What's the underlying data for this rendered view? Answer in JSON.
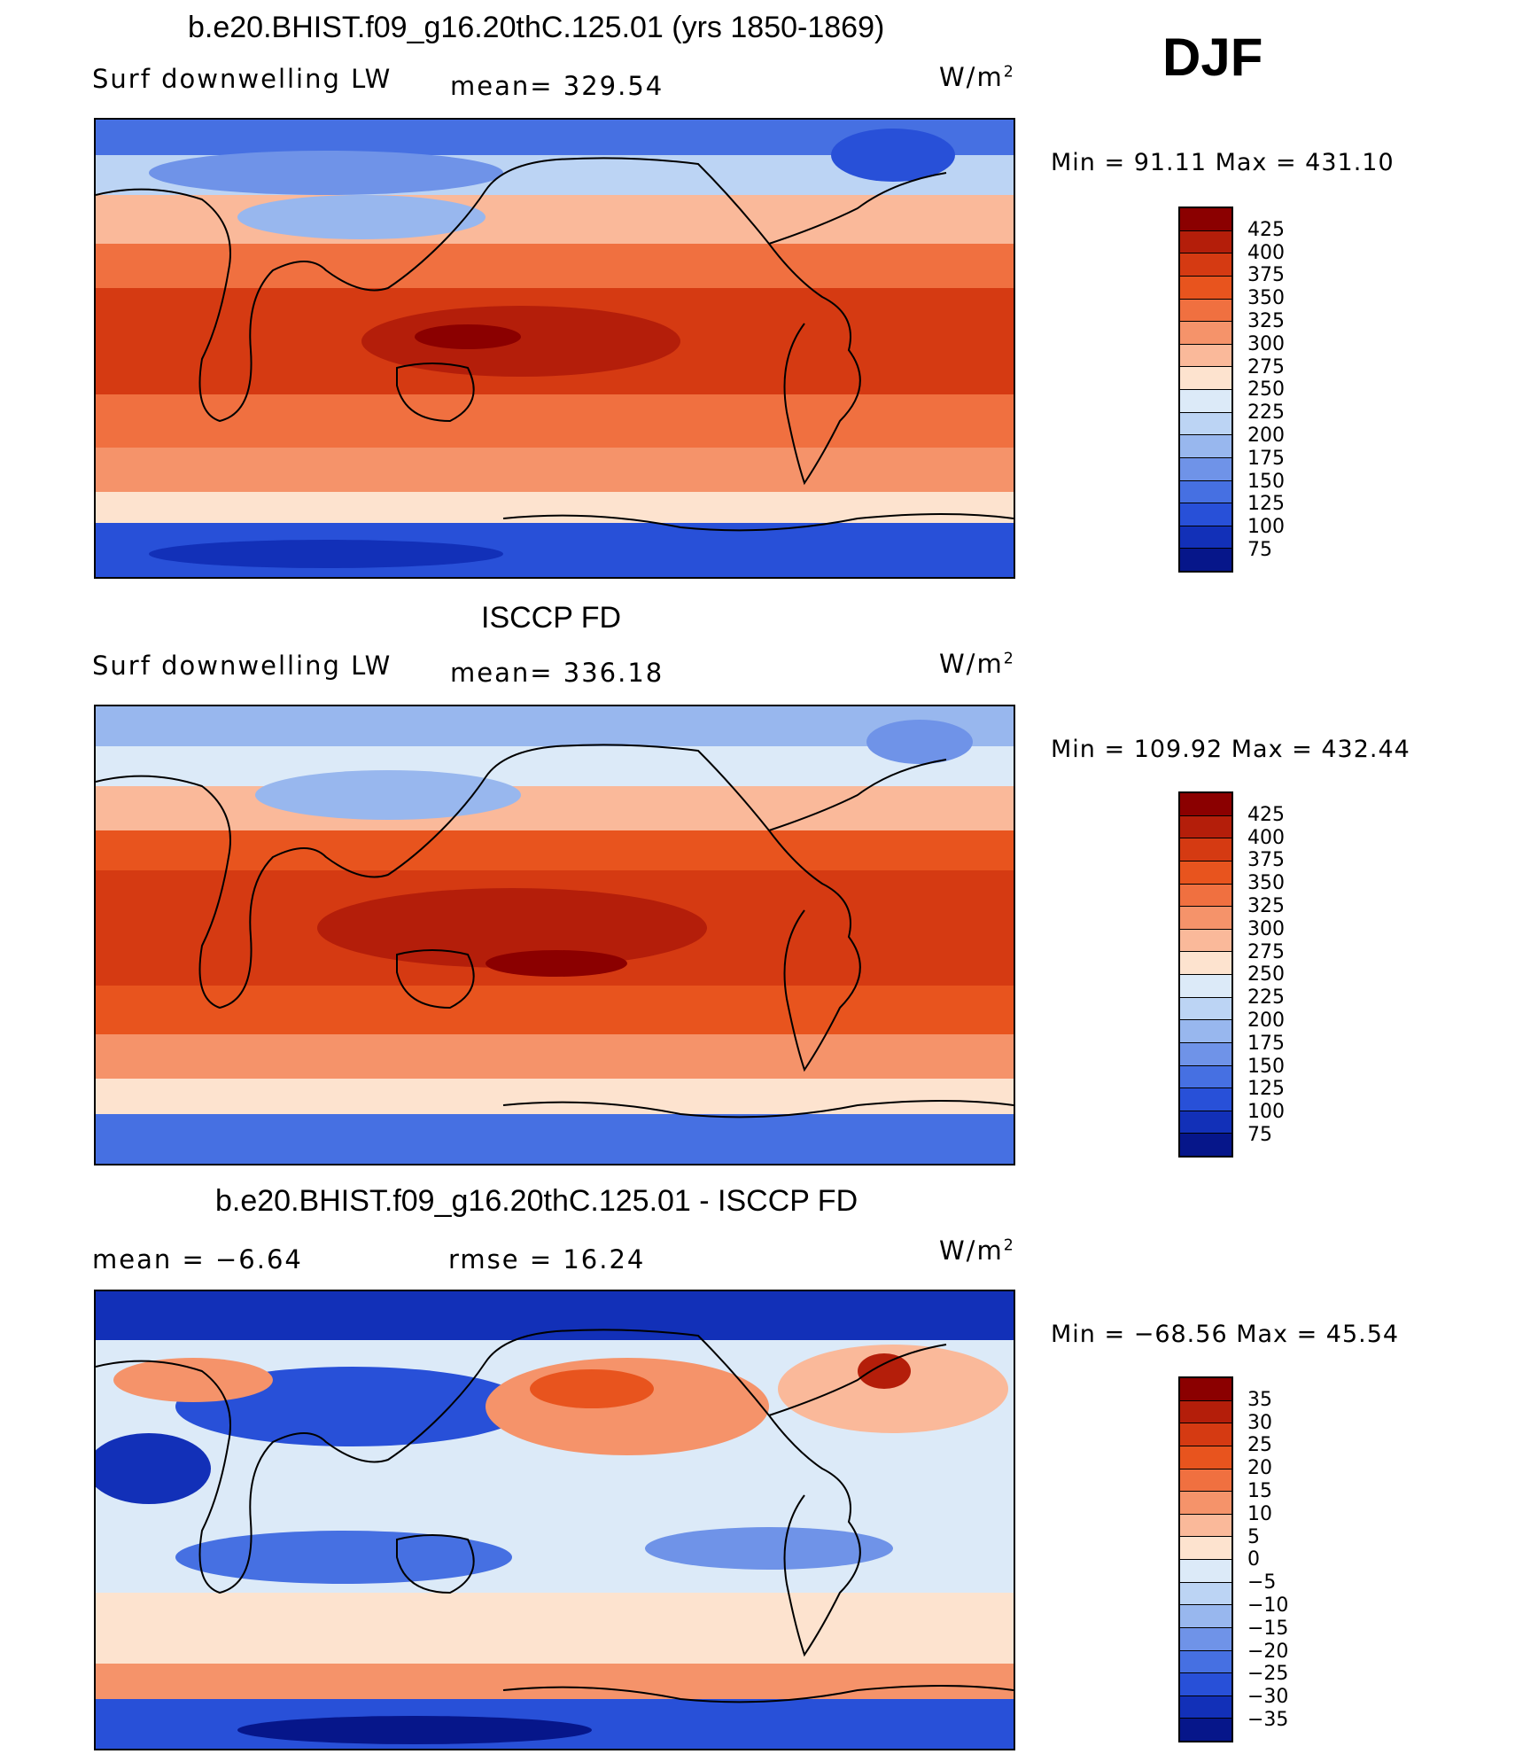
{
  "season": "DJF",
  "panels": [
    {
      "title": "b.e20.BHIST.f09_g16.20thC.125.01 (yrs 1850-1869)",
      "left_label": "Surf  downwelling  LW",
      "mid_label": "mean=  329.54",
      "units": "W/m",
      "units_sup": "2",
      "minmax": "Min  =    91.11  Max  =  431.10"
    },
    {
      "title": "ISCCP FD",
      "left_label": "Surf  downwelling  LW",
      "mid_label": "mean=  336.18",
      "units": "W/m",
      "units_sup": "2",
      "minmax": "Min  =  109.92  Max  =  432.44"
    },
    {
      "title": "b.e20.BHIST.f09_g16.20thC.125.01 - ISCCP FD",
      "left_label": "mean  =    −6.64",
      "mid_label": "rmse  =    16.24",
      "units": "W/m",
      "units_sup": "2",
      "minmax": "Min  =  −68.56  Max  =    45.54"
    }
  ],
  "chart_data": [
    {
      "type": "heatmap",
      "title": "b.e20.BHIST.f09_g16.20thC.125.01 (yrs 1850-1869)",
      "variable": "Surf downwelling LW",
      "units": "W/m2",
      "mean": 329.54,
      "min": 91.11,
      "max": 431.1,
      "colorbar_levels": [
        "425",
        "400",
        "375",
        "350",
        "325",
        "300",
        "275",
        "250",
        "225",
        "200",
        "175",
        "150",
        "125",
        "100",
        "75"
      ],
      "colors": [
        "#8b0000",
        "#b41e0a",
        "#d53a12",
        "#e8541e",
        "#f07040",
        "#f5936a",
        "#fab99a",
        "#fde3cf",
        "#dceaf8",
        "#bcd4f4",
        "#98b7ee",
        "#6f93e8",
        "#4670e2",
        "#2850d8",
        "#1230b8",
        "#06168a"
      ]
    },
    {
      "type": "heatmap",
      "title": "ISCCP FD",
      "variable": "Surf downwelling LW",
      "units": "W/m2",
      "mean": 336.18,
      "min": 109.92,
      "max": 432.44,
      "colorbar_levels": [
        "425",
        "400",
        "375",
        "350",
        "325",
        "300",
        "275",
        "250",
        "225",
        "200",
        "175",
        "150",
        "125",
        "100",
        "75"
      ],
      "colors": [
        "#8b0000",
        "#b41e0a",
        "#d53a12",
        "#e8541e",
        "#f07040",
        "#f5936a",
        "#fab99a",
        "#fde3cf",
        "#dceaf8",
        "#bcd4f4",
        "#98b7ee",
        "#6f93e8",
        "#4670e2",
        "#2850d8",
        "#1230b8",
        "#06168a"
      ]
    },
    {
      "type": "heatmap",
      "title": "b.e20.BHIST.f09_g16.20thC.125.01 - ISCCP FD",
      "units": "W/m2",
      "mean": -6.64,
      "rmse": 16.24,
      "min": -68.56,
      "max": 45.54,
      "colorbar_levels": [
        "35",
        "30",
        "25",
        "20",
        "15",
        "10",
        "5",
        "0",
        "−5",
        "−10",
        "−15",
        "−20",
        "−25",
        "−30",
        "−35"
      ],
      "colors": [
        "#8b0000",
        "#b41e0a",
        "#d53a12",
        "#e8541e",
        "#f07040",
        "#f5936a",
        "#fab99a",
        "#fde3cf",
        "#dceaf8",
        "#bcd4f4",
        "#98b7ee",
        "#6f93e8",
        "#4670e2",
        "#2850d8",
        "#1230b8",
        "#06168a"
      ]
    }
  ]
}
